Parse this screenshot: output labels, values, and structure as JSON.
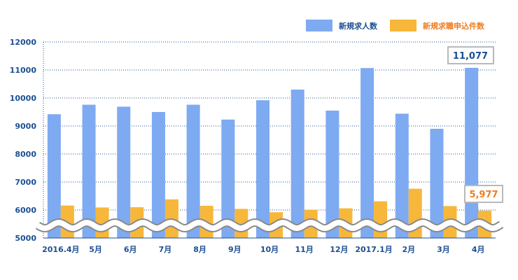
{
  "chart_data": {
    "type": "bar",
    "categories": [
      "2016.4月",
      "5月",
      "6月",
      "7月",
      "8月",
      "9月",
      "10月",
      "11月",
      "12月",
      "2017.1月",
      "2月",
      "3月",
      "4月"
    ],
    "series": [
      {
        "name": "新規求人数",
        "color": "#7eaaf2",
        "values": [
          9420,
          9760,
          9690,
          9500,
          9760,
          9230,
          9920,
          10300,
          9550,
          11070,
          9440,
          8900,
          11077
        ]
      },
      {
        "name": "新規求職申込件数",
        "color": "#f7b73a",
        "values": [
          6160,
          6090,
          6100,
          6380,
          6150,
          6040,
          5920,
          6010,
          6060,
          6310,
          6760,
          6140,
          5977
        ]
      }
    ],
    "yticks": [
      "12000",
      "11000",
      "10000",
      "9000",
      "8000",
      "7000",
      "6000",
      "5000"
    ],
    "ylim": [
      5000,
      12000
    ],
    "axis_break": true,
    "grid": "horizontal-dotted",
    "legend": "top-right",
    "callouts": [
      {
        "text": "11,077",
        "color": "#1d4f91"
      },
      {
        "text": "5,977",
        "color": "#ee7d22"
      }
    ]
  }
}
